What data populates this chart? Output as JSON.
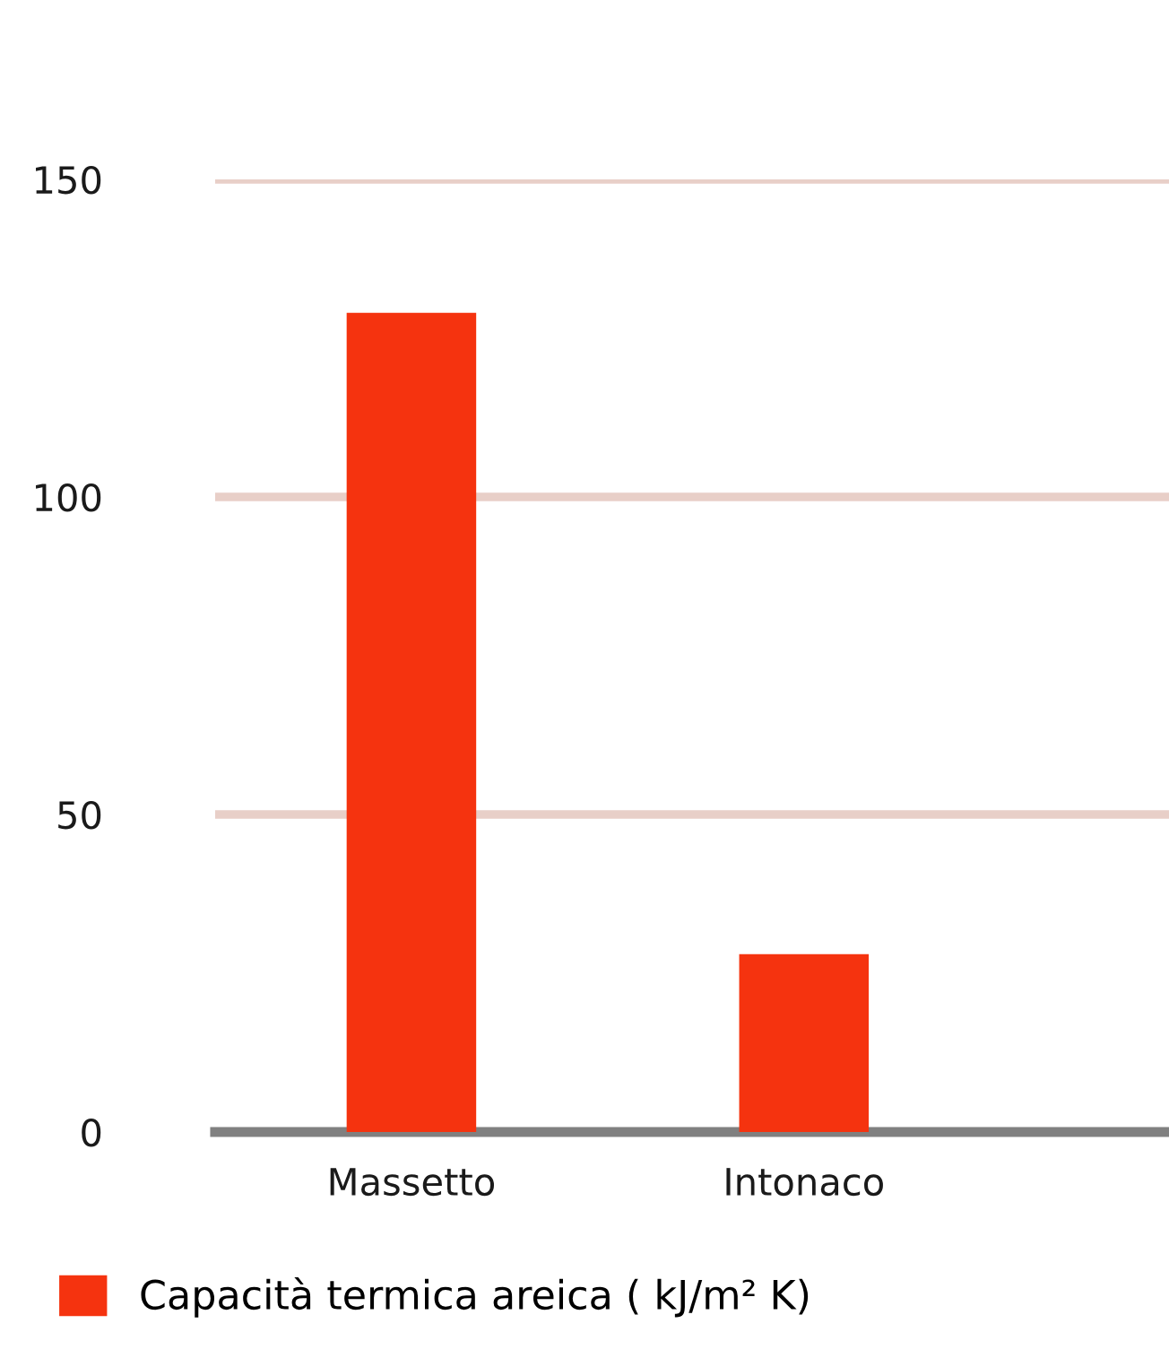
{
  "chart_data": {
    "type": "bar",
    "categories": [
      "Massetto",
      "Intonaco"
    ],
    "series": [
      {
        "name": "Capacità termica areica ( kJ/m² K)",
        "color": "#f5330f",
        "values": [
          129,
          28
        ]
      }
    ],
    "ylim": [
      0,
      150
    ],
    "yticks": [
      0,
      50,
      100,
      150
    ],
    "grid": "y",
    "legend": "bottom left"
  }
}
